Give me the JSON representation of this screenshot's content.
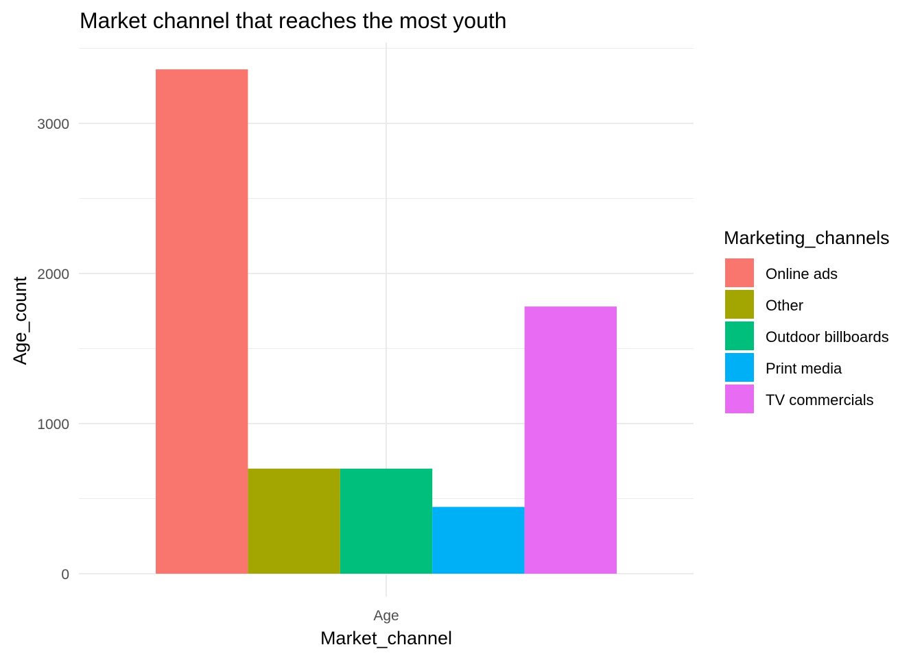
{
  "chart_data": {
    "type": "bar",
    "title": "Market channel that reaches the most youth",
    "xlabel": "Market_channel",
    "ylabel": "Age_count",
    "categories": [
      "Age"
    ],
    "series": [
      {
        "name": "Online ads",
        "values": [
          3360
        ],
        "color": "#F8766D"
      },
      {
        "name": "Other",
        "values": [
          700
        ],
        "color": "#A3A500"
      },
      {
        "name": "Outdoor billboards",
        "values": [
          700
        ],
        "color": "#00BF7D"
      },
      {
        "name": "Print media",
        "values": [
          445
        ],
        "color": "#00B0F6"
      },
      {
        "name": "TV commercials",
        "values": [
          1780
        ],
        "color": "#E76BF3"
      }
    ],
    "ylim": [
      0,
      3450
    ],
    "yticks": [
      0,
      1000,
      2000,
      3000
    ],
    "ytick_labels": [
      "0",
      "1000",
      "2000",
      "3000"
    ],
    "legend": {
      "title": "Marketing_channels",
      "position": "right"
    },
    "grid": true,
    "theme": "minimal"
  }
}
